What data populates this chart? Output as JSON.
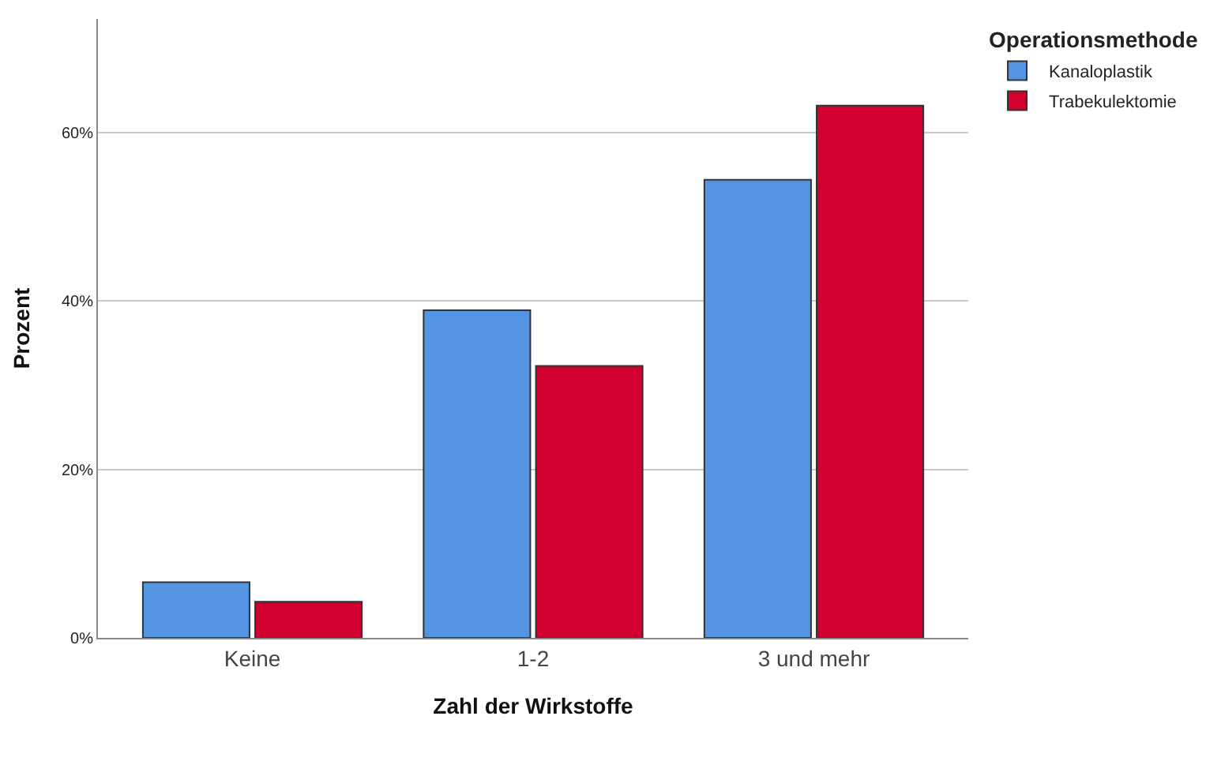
{
  "chart_data": {
    "type": "bar",
    "xlabel": "Zahl der Wirkstoffe",
    "ylabel": "Prozent",
    "legend_title": "Operationsmethode",
    "categories": [
      "Keine",
      "1-2",
      "3 und mehr"
    ],
    "series": [
      {
        "name": "Kanaloplastik",
        "color": "#5394e3",
        "values": [
          6.6,
          38.9,
          54.4
        ]
      },
      {
        "name": "Trabekulektomie",
        "color": "#d1002e",
        "values": [
          4.3,
          32.3,
          63.2
        ]
      }
    ],
    "ylim": [
      0,
      73.5
    ],
    "yticks": [
      {
        "value": 0,
        "label": "0%"
      },
      {
        "value": 20,
        "label": "20%"
      },
      {
        "value": 40,
        "label": "40%"
      },
      {
        "value": 60,
        "label": "60%"
      }
    ],
    "grid": "y",
    "legend": "top right"
  }
}
